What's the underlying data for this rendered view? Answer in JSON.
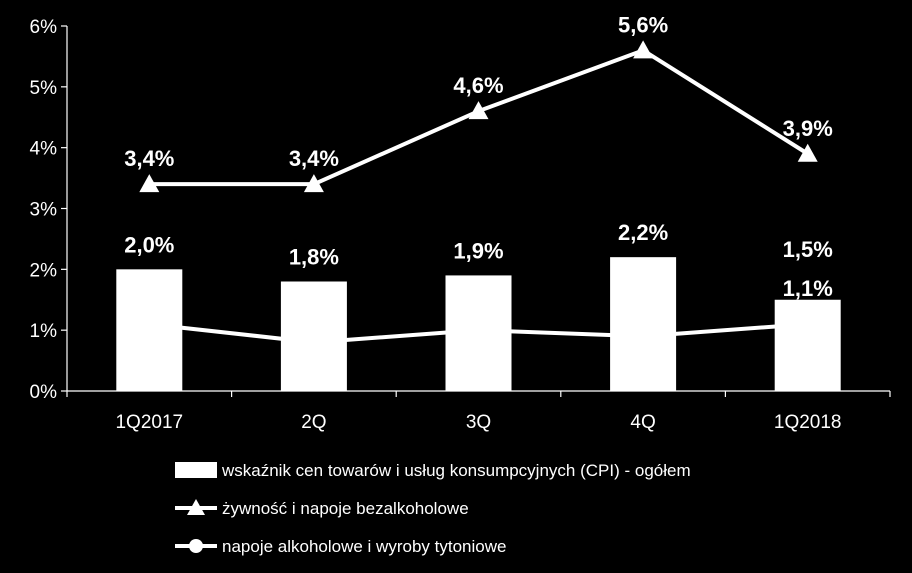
{
  "chart_data": {
    "type": "bar",
    "title": "",
    "xlabel": "",
    "ylabel": "",
    "categories": [
      "1Q2017",
      "2Q",
      "3Q",
      "4Q",
      "1Q2018"
    ],
    "ylim": [
      0,
      6
    ],
    "yticks": [
      0,
      1,
      2,
      3,
      4,
      5,
      6
    ],
    "ytick_labels": [
      "0%",
      "1%",
      "2%",
      "3%",
      "4%",
      "5%",
      "6%"
    ],
    "grid": false,
    "legend_position": "bottom",
    "series": [
      {
        "name": "wskaźnik cen towarów i usług konsumpcyjnych (CPI) - ogółem",
        "type": "bar",
        "marker": "square",
        "values": [
          2.0,
          1.8,
          1.9,
          2.2,
          1.5
        ],
        "labels": [
          "2,0%",
          "1,8%",
          "1,9%",
          "2,2%",
          "1,5%"
        ],
        "color": "#ffffff"
      },
      {
        "name": "żywność i napoje bezalkoholowe",
        "type": "line",
        "marker": "triangle",
        "values": [
          3.4,
          3.4,
          4.6,
          5.6,
          3.9
        ],
        "labels": [
          "3,4%",
          "3,4%",
          "4,6%",
          "5,6%",
          "3,9%"
        ],
        "color": "#ffffff"
      },
      {
        "name": "napoje alkoholowe i wyroby tytoniowe",
        "type": "line",
        "marker": "circle",
        "values": [
          1.1,
          0.8,
          1.0,
          0.9,
          1.1
        ],
        "labels": [
          "",
          "",
          "",
          "",
          "1,1%"
        ],
        "color": "#ffffff"
      }
    ],
    "colors": {
      "background": "#000000",
      "foreground": "#ffffff"
    }
  }
}
